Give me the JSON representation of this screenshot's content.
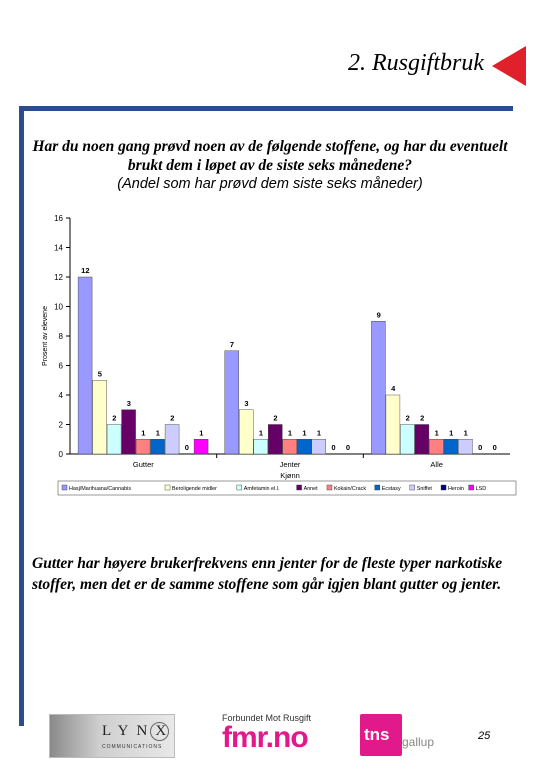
{
  "page": {
    "title": "2. Rusgiftbruk",
    "question_bold": "Har du noen gang prøvd noen av de følgende stoffene, og har du eventuelt brukt dem i løpet av de siste seks månedene?",
    "question_sub": "(Andel som har prøvd dem siste seks måneder)",
    "conclusion": "Gutter har høyere brukerfrekvens enn jenter for de fleste typer narkotiske stoffer, men det er de samme stoffene som går igjen blant gutter og jenter.",
    "page_number": "25",
    "accent_color": "#2a4d8f",
    "arrow_color": "#e0202a"
  },
  "footer": {
    "lynx_word": "LYNX",
    "lynx_sub": "COMMUNICATIONS",
    "fmr_top": "Forbundet Mot Rusgift",
    "fmr_main": "fmr.no",
    "tns_word": "tns",
    "tns_gallup": "gallup"
  },
  "chart_data": {
    "type": "bar",
    "title": "",
    "xlabel": "Kjønn",
    "ylabel": "Prosent av elevene",
    "ylim": [
      0,
      16
    ],
    "yticks": [
      0,
      2,
      4,
      6,
      8,
      10,
      12,
      14,
      16
    ],
    "grid": false,
    "legend_position": "bottom",
    "categories": [
      "Gutter",
      "Jenter",
      "Alle"
    ],
    "series": [
      {
        "name": "Hasj/Marihuana/Cannabis",
        "color": "#9999ff",
        "values": [
          12,
          7,
          9
        ]
      },
      {
        "name": "Beroligende midler",
        "color": "#ffffcc",
        "values": [
          5,
          3,
          4
        ]
      },
      {
        "name": "Amfetamin el.l.",
        "color": "#ccffff",
        "values": [
          2,
          1,
          2
        ]
      },
      {
        "name": "Annet",
        "color": "#660066",
        "values": [
          3,
          2,
          2
        ]
      },
      {
        "name": "Kokain/Crack",
        "color": "#ff8080",
        "values": [
          1,
          1,
          1
        ]
      },
      {
        "name": "Ecstasy",
        "color": "#0066cc",
        "values": [
          1,
          1,
          1
        ]
      },
      {
        "name": "Sniffet",
        "color": "#ccccff",
        "values": [
          2,
          1,
          1
        ]
      },
      {
        "name": "Heroin",
        "color": "#000080",
        "values": [
          0,
          0,
          0
        ]
      },
      {
        "name": "LSD",
        "color": "#ff00ff",
        "values": [
          1,
          0,
          0
        ]
      }
    ]
  }
}
